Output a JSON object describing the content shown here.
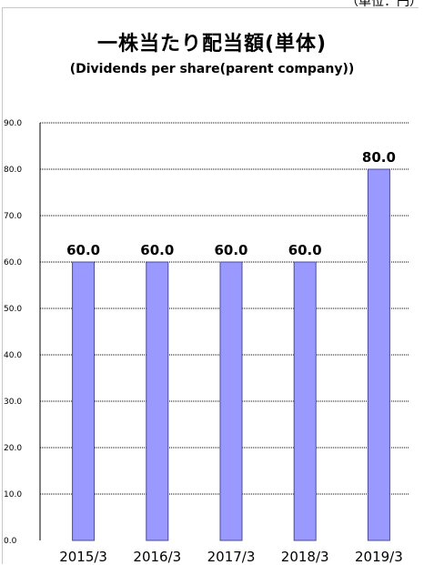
{
  "unit_note": "（単位：円）",
  "chart_data": {
    "type": "bar",
    "title": "一株当たり配当額(単体)",
    "subtitle": "(Dividends per share(parent company))",
    "categories": [
      "2015/3",
      "2016/3",
      "2017/3",
      "2018/3",
      "2019/3"
    ],
    "values": [
      60.0,
      60.0,
      60.0,
      60.0,
      80.0
    ],
    "ylim": [
      0,
      90
    ],
    "yticks": [
      "0.0",
      "10.0",
      "20.0",
      "30.0",
      "40.0",
      "50.0",
      "60.0",
      "70.0",
      "80.0",
      "90.0"
    ],
    "data_labels": [
      "60.0",
      "60.0",
      "60.0",
      "60.0",
      "80.0"
    ],
    "grid": true,
    "colors": {
      "bar_fill": "#9999ff",
      "bar_stroke": "#4b4b99",
      "grid": "#000000"
    }
  }
}
